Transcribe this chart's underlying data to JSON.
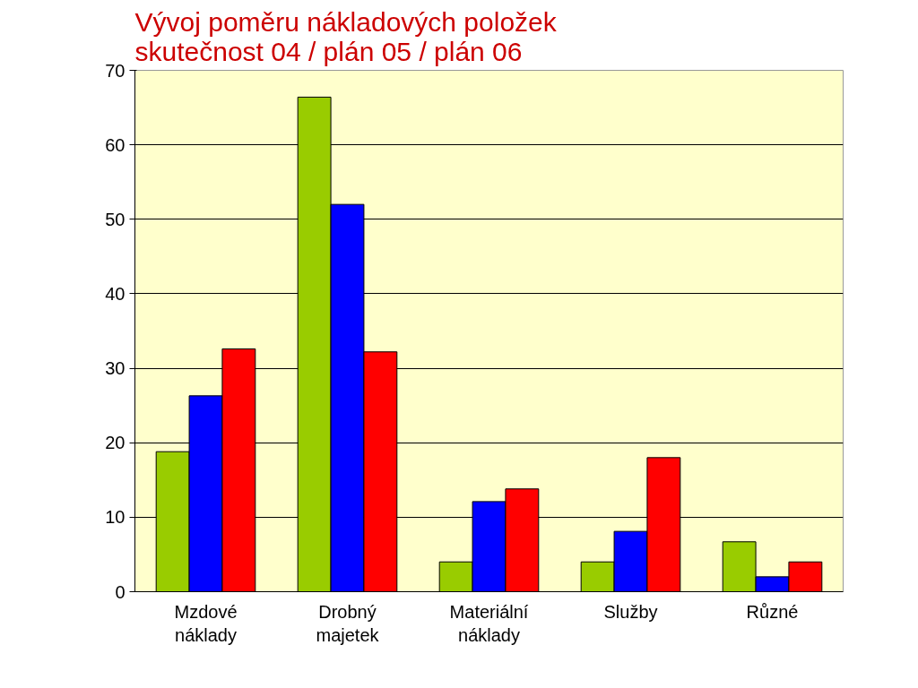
{
  "chart_data": {
    "type": "bar",
    "title": "Vývoj  poměru  nákladových položek\nskutečnost 04   /   plán 05   /   plán 06",
    "categories": [
      "Mzdové\nnáklady",
      "Drobný\nmajetek",
      "Materiální\nnáklady",
      "Služby",
      "Různé"
    ],
    "series": [
      {
        "color": "#99cc00",
        "values": [
          18.8,
          66.4,
          4,
          4,
          6.7
        ]
      },
      {
        "color": "#0000ff",
        "values": [
          26.3,
          52,
          12.1,
          8.1,
          2
        ]
      },
      {
        "color": "#ff0000",
        "values": [
          32.6,
          32.2,
          13.8,
          18,
          4
        ]
      }
    ],
    "ylim": [
      0,
      70
    ],
    "yticks": [
      0,
      10,
      20,
      30,
      40,
      50,
      60,
      70
    ],
    "grid": "y"
  }
}
